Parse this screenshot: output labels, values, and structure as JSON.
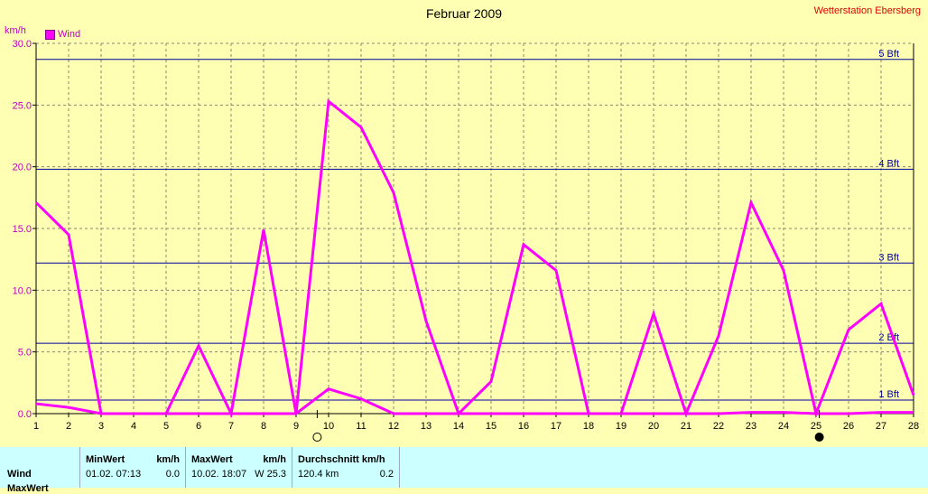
{
  "title": "Februar 2009",
  "station": "Wetterstation Ebersberg",
  "unit_label": "km/h",
  "legend": "Wind",
  "colors": {
    "background": "#FFFFB3",
    "series": "#FF00FF",
    "bft": "#0000A0",
    "grid": "#999999"
  },
  "chart_data": {
    "type": "line",
    "title": "Februar 2009",
    "ylabel": "km/h",
    "xlabel": "",
    "xlim": [
      1,
      28
    ],
    "ylim": [
      0,
      30
    ],
    "x_ticks": [
      1,
      2,
      3,
      4,
      5,
      6,
      7,
      8,
      9,
      10,
      11,
      12,
      13,
      14,
      15,
      16,
      17,
      18,
      19,
      20,
      21,
      22,
      23,
      24,
      25,
      26,
      27,
      28
    ],
    "y_ticks": [
      "0.0",
      "5.0",
      "10.0",
      "15.0",
      "20.0",
      "25.0",
      "30.0"
    ],
    "grid": true,
    "legend_position": "top-left",
    "series": [
      {
        "name": "Wind",
        "x": [
          1,
          2,
          3,
          4,
          5,
          6,
          7,
          8,
          9,
          10,
          11,
          12,
          13,
          14,
          15,
          16,
          17,
          18,
          19,
          20,
          21,
          22,
          23,
          24,
          25,
          26,
          27,
          28
        ],
        "values": [
          17.1,
          14.5,
          0,
          0,
          0,
          5.5,
          0,
          14.9,
          0,
          25.3,
          23.2,
          17.9,
          7.5,
          0,
          2.6,
          13.7,
          11.6,
          0,
          0,
          8.1,
          0,
          6.3,
          17.1,
          11.6,
          0,
          6.8,
          8.9,
          1.5
        ]
      },
      {
        "name": "",
        "x": [
          1,
          2,
          3,
          4,
          5,
          6,
          7,
          8,
          9,
          10,
          11,
          12,
          13,
          14,
          15,
          16,
          17,
          18,
          19,
          20,
          21,
          22,
          23,
          24,
          25,
          26,
          27,
          28
        ],
        "values": [
          0.8,
          0.5,
          0,
          0,
          0,
          0,
          0,
          0,
          0,
          2.0,
          1.2,
          0,
          0,
          0,
          0,
          0,
          0,
          0,
          0,
          0,
          0,
          0,
          0.1,
          0.1,
          0,
          0,
          0.1,
          0.1
        ]
      }
    ],
    "reference_lines": [
      {
        "label": "1 Bft",
        "value": 1.1
      },
      {
        "label": "2 Bft",
        "value": 5.7
      },
      {
        "label": "3 Bft",
        "value": 12.2
      },
      {
        "label": "4 Bft",
        "value": 19.8
      },
      {
        "label": "5 Bft",
        "value": 28.7
      }
    ],
    "moon_markers": [
      {
        "x": 9.65,
        "type": "full-moon"
      },
      {
        "x": 25.1,
        "type": "new-moon"
      }
    ]
  },
  "table": {
    "row_labels": [
      "Wind",
      "MaxWert"
    ],
    "min": {
      "header": "MinWert",
      "unit": "km/h",
      "date": "01.02.  07:13",
      "value": "0.0"
    },
    "max": {
      "header": "MaxWert",
      "unit": "km/h",
      "date": "10.02.  18:07",
      "value": "W 25.3"
    },
    "avg": {
      "header": "Durchschnitt km/h",
      "distance": "120.4 km",
      "value": "0.2"
    }
  }
}
